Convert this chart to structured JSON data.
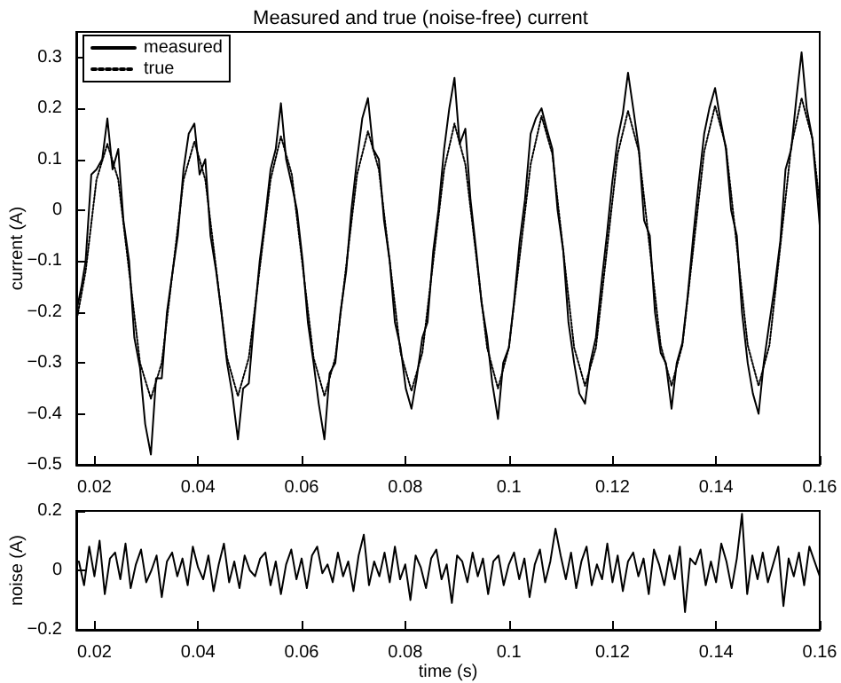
{
  "chart_data": [
    {
      "type": "line",
      "title": "Measured and true (noise-free) current",
      "ylabel": "current (A)",
      "xlim": [
        0.0165,
        0.16
      ],
      "xticks": [
        0.02,
        0.04,
        0.06,
        0.08,
        0.1,
        0.12,
        0.14,
        0.16
      ],
      "ylim": [
        -0.5,
        0.35
      ],
      "yticks": [
        -0.5,
        -0.4,
        -0.3,
        -0.2,
        -0.1,
        0,
        0.1,
        0.2,
        0.3
      ],
      "grid": false,
      "legend": "top left",
      "marker": "none",
      "series": [
        {
          "name": "measured",
          "color": "#000000",
          "line_style": "solid",
          "x": [
            0.0165,
            0.0175,
            0.0183,
            0.0194,
            0.0204,
            0.0215,
            0.0225,
            0.0235,
            0.0246,
            0.0256,
            0.0267,
            0.0277,
            0.0288,
            0.0298,
            0.0309,
            0.0319,
            0.033,
            0.034,
            0.0351,
            0.0361,
            0.0372,
            0.0382,
            0.0393,
            0.0403,
            0.0414,
            0.0424,
            0.0435,
            0.0445,
            0.0456,
            0.0466,
            0.0477,
            0.0487,
            0.0498,
            0.0508,
            0.0519,
            0.0529,
            0.054,
            0.055,
            0.056,
            0.057,
            0.0581,
            0.0591,
            0.0602,
            0.0612,
            0.0623,
            0.0633,
            0.0644,
            0.0654,
            0.0665,
            0.0675,
            0.0686,
            0.0696,
            0.0707,
            0.0717,
            0.0728,
            0.0738,
            0.0749,
            0.0759,
            0.077,
            0.078,
            0.0791,
            0.0801,
            0.0812,
            0.0822,
            0.0833,
            0.0843,
            0.0854,
            0.0864,
            0.0875,
            0.0885,
            0.0895,
            0.0905,
            0.0916,
            0.0926,
            0.0937,
            0.0947,
            0.0958,
            0.0968,
            0.0979,
            0.0989,
            0.1,
            0.101,
            0.1021,
            0.1031,
            0.1042,
            0.1052,
            0.1063,
            0.1073,
            0.1084,
            0.1094,
            0.1105,
            0.1115,
            0.1126,
            0.1136,
            0.1147,
            0.1157,
            0.1168,
            0.1178,
            0.1189,
            0.1199,
            0.121,
            0.122,
            0.123,
            0.124,
            0.1251,
            0.1261,
            0.1272,
            0.1282,
            0.1293,
            0.1303,
            0.1314,
            0.1324,
            0.1335,
            0.1345,
            0.1356,
            0.1366,
            0.1377,
            0.1387,
            0.1398,
            0.1408,
            0.1419,
            0.1429,
            0.144,
            0.145,
            0.1461,
            0.1471,
            0.1482,
            0.1492,
            0.1503,
            0.1513,
            0.1524,
            0.1534,
            0.1545,
            0.1555,
            0.1565,
            0.1575,
            0.1586,
            0.1596,
            0.16
          ],
          "values": [
            -0.2,
            -0.15,
            -0.1,
            0.07,
            0.08,
            0.1,
            0.18,
            0.08,
            0.12,
            -0.02,
            -0.1,
            -0.25,
            -0.31,
            -0.42,
            -0.48,
            -0.33,
            -0.33,
            -0.2,
            -0.12,
            -0.05,
            0.08,
            0.15,
            0.17,
            0.07,
            0.1,
            -0.05,
            -0.12,
            -0.2,
            -0.3,
            -0.36,
            -0.45,
            -0.35,
            -0.34,
            -0.22,
            -0.1,
            -0.02,
            0.08,
            0.12,
            0.21,
            0.1,
            0.05,
            0.0,
            -0.1,
            -0.22,
            -0.3,
            -0.38,
            -0.45,
            -0.32,
            -0.3,
            -0.2,
            -0.12,
            0.0,
            0.1,
            0.18,
            0.22,
            0.12,
            0.1,
            -0.02,
            -0.1,
            -0.22,
            -0.27,
            -0.35,
            -0.39,
            -0.33,
            -0.25,
            -0.22,
            -0.08,
            0.0,
            0.12,
            0.2,
            0.26,
            0.13,
            0.16,
            0.02,
            -0.08,
            -0.18,
            -0.25,
            -0.34,
            -0.41,
            -0.3,
            -0.27,
            -0.18,
            -0.06,
            0.02,
            0.15,
            0.18,
            0.2,
            0.16,
            0.12,
            0.0,
            -0.08,
            -0.22,
            -0.3,
            -0.36,
            -0.38,
            -0.3,
            -0.25,
            -0.15,
            -0.05,
            0.05,
            0.14,
            0.19,
            0.27,
            0.2,
            0.12,
            -0.02,
            -0.05,
            -0.2,
            -0.28,
            -0.3,
            -0.39,
            -0.3,
            -0.26,
            -0.17,
            -0.05,
            0.05,
            0.15,
            0.2,
            0.24,
            0.18,
            0.12,
            0.0,
            -0.05,
            -0.2,
            -0.3,
            -0.36,
            -0.4,
            -0.3,
            -0.22,
            -0.15,
            -0.06,
            0.08,
            0.12,
            0.22,
            0.31,
            0.2,
            0.14,
            0.02,
            -0.03
          ]
        },
        {
          "name": "true",
          "color": "#000000",
          "line_style": "dotted",
          "x": [
            0.0165,
            0.0183,
            0.0204,
            0.0225,
            0.0246,
            0.0267,
            0.0288,
            0.0309,
            0.033,
            0.0351,
            0.0372,
            0.0393,
            0.0414,
            0.0435,
            0.0456,
            0.0477,
            0.0498,
            0.0519,
            0.054,
            0.056,
            0.0581,
            0.0602,
            0.0623,
            0.0644,
            0.0665,
            0.0686,
            0.0707,
            0.0728,
            0.0749,
            0.077,
            0.0791,
            0.0812,
            0.0833,
            0.0854,
            0.0875,
            0.0895,
            0.0916,
            0.0937,
            0.0958,
            0.0979,
            0.1,
            0.1021,
            0.1042,
            0.1063,
            0.1084,
            0.1105,
            0.1126,
            0.1147,
            0.1168,
            0.1189,
            0.121,
            0.123,
            0.1251,
            0.1272,
            0.1293,
            0.1314,
            0.1335,
            0.1356,
            0.1377,
            0.1398,
            0.1419,
            0.144,
            0.1461,
            0.1482,
            0.1503,
            0.1524,
            0.1545,
            0.1565,
            0.1586,
            0.16
          ],
          "values": [
            -0.22,
            -0.12,
            0.06,
            0.13,
            0.06,
            -0.12,
            -0.3,
            -0.37,
            -0.3,
            -0.12,
            0.06,
            0.135,
            0.06,
            -0.115,
            -0.29,
            -0.365,
            -0.29,
            -0.115,
            0.06,
            0.145,
            0.07,
            -0.11,
            -0.29,
            -0.365,
            -0.29,
            -0.11,
            0.07,
            0.155,
            0.08,
            -0.1,
            -0.28,
            -0.355,
            -0.28,
            -0.1,
            0.08,
            0.17,
            0.09,
            -0.09,
            -0.27,
            -0.35,
            -0.27,
            -0.09,
            0.09,
            0.185,
            0.11,
            -0.08,
            -0.27,
            -0.345,
            -0.27,
            -0.08,
            0.11,
            0.195,
            0.115,
            -0.075,
            -0.265,
            -0.345,
            -0.265,
            -0.075,
            0.115,
            0.205,
            0.125,
            -0.07,
            -0.265,
            -0.345,
            -0.265,
            -0.07,
            0.125,
            0.22,
            0.14,
            0.01
          ]
        }
      ]
    },
    {
      "type": "line",
      "xlabel": "time (s)",
      "ylabel": "noise (A)",
      "xlim": [
        0.0165,
        0.16
      ],
      "xticks": [
        0.02,
        0.04,
        0.06,
        0.08,
        0.1,
        0.12,
        0.14,
        0.16
      ],
      "ylim": [
        -0.2,
        0.2
      ],
      "yticks": [
        -0.2,
        0,
        0.2
      ],
      "grid": false,
      "marker": "none",
      "series": [
        {
          "color": "#000000",
          "line_style": "solid",
          "x": [
            0.017,
            0.018,
            0.019,
            0.02,
            0.021,
            0.022,
            0.023,
            0.024,
            0.025,
            0.026,
            0.027,
            0.028,
            0.029,
            0.03,
            0.031,
            0.032,
            0.033,
            0.034,
            0.035,
            0.036,
            0.037,
            0.038,
            0.039,
            0.04,
            0.041,
            0.042,
            0.043,
            0.044,
            0.045,
            0.046,
            0.047,
            0.048,
            0.049,
            0.05,
            0.051,
            0.052,
            0.053,
            0.054,
            0.055,
            0.056,
            0.057,
            0.058,
            0.059,
            0.06,
            0.061,
            0.062,
            0.063,
            0.064,
            0.065,
            0.066,
            0.067,
            0.068,
            0.069,
            0.07,
            0.071,
            0.072,
            0.073,
            0.074,
            0.075,
            0.076,
            0.077,
            0.078,
            0.079,
            0.08,
            0.081,
            0.082,
            0.083,
            0.084,
            0.085,
            0.086,
            0.087,
            0.088,
            0.089,
            0.09,
            0.091,
            0.092,
            0.093,
            0.094,
            0.095,
            0.096,
            0.097,
            0.098,
            0.099,
            0.1,
            0.101,
            0.102,
            0.103,
            0.104,
            0.105,
            0.106,
            0.107,
            0.108,
            0.109,
            0.11,
            0.111,
            0.112,
            0.113,
            0.114,
            0.115,
            0.116,
            0.117,
            0.118,
            0.119,
            0.12,
            0.121,
            0.122,
            0.123,
            0.124,
            0.125,
            0.126,
            0.127,
            0.128,
            0.129,
            0.13,
            0.131,
            0.132,
            0.133,
            0.134,
            0.135,
            0.136,
            0.137,
            0.138,
            0.139,
            0.14,
            0.141,
            0.142,
            0.143,
            0.144,
            0.145,
            0.146,
            0.147,
            0.148,
            0.149,
            0.15,
            0.151,
            0.152,
            0.153,
            0.154,
            0.155,
            0.156,
            0.157,
            0.158,
            0.159,
            0.16
          ],
          "values": [
            0.03,
            -0.05,
            0.08,
            -0.02,
            0.1,
            -0.08,
            0.04,
            0.06,
            -0.03,
            0.09,
            -0.06,
            0.02,
            0.07,
            -0.04,
            0.0,
            0.05,
            -0.09,
            0.03,
            0.06,
            -0.02,
            0.04,
            -0.05,
            0.08,
            0.01,
            -0.03,
            0.05,
            -0.07,
            0.02,
            0.09,
            -0.04,
            0.03,
            -0.06,
            0.05,
            0.0,
            -0.02,
            0.04,
            0.06,
            -0.05,
            0.03,
            -0.08,
            0.02,
            0.07,
            -0.03,
            0.04,
            -0.06,
            0.05,
            0.08,
            -0.01,
            0.02,
            -0.04,
            0.06,
            -0.02,
            0.03,
            -0.07,
            0.05,
            0.12,
            -0.05,
            0.03,
            -0.02,
            0.06,
            -0.04,
            0.08,
            -0.03,
            0.02,
            -0.1,
            0.05,
            0.01,
            -0.06,
            0.04,
            0.07,
            -0.03,
            0.02,
            -0.11,
            0.05,
            0.03,
            -0.04,
            0.06,
            -0.02,
            0.04,
            -0.08,
            0.03,
            0.05,
            -0.05,
            0.02,
            0.06,
            -0.03,
            0.04,
            -0.09,
            0.02,
            0.07,
            -0.04,
            0.03,
            0.14,
            0.05,
            -0.03,
            0.06,
            -0.06,
            0.03,
            0.08,
            -0.05,
            0.02,
            -0.03,
            0.09,
            -0.04,
            0.05,
            -0.07,
            0.03,
            0.06,
            -0.02,
            0.04,
            -0.08,
            0.07,
            0.02,
            -0.05,
            0.05,
            -0.03,
            0.08,
            -0.14,
            0.04,
            0.02,
            0.07,
            -0.05,
            0.03,
            -0.04,
            0.09,
            0.03,
            -0.06,
            0.04,
            0.19,
            -0.08,
            0.05,
            -0.03,
            0.06,
            -0.04,
            0.02,
            0.08,
            -0.12,
            0.04,
            -0.02,
            0.06,
            -0.05,
            0.08,
            0.03,
            -0.02
          ]
        }
      ]
    }
  ]
}
